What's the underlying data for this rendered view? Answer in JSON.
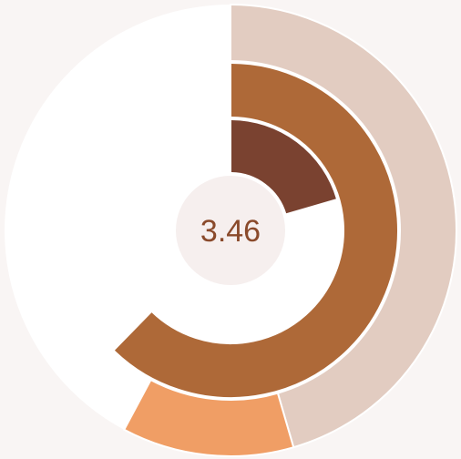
{
  "chart_data": {
    "type": "pie",
    "subtype": "nested-radial-donut",
    "center_label": "3.46",
    "colors": {
      "background": "#f9f5f4",
      "track": "#ffffff",
      "center_disc": "#f6efee",
      "center_text": "#8a4a2b"
    },
    "rings": [
      {
        "ring": "outer",
        "slices": [
          {
            "value": 0.455,
            "color": "#e2ccc1"
          },
          {
            "value": 0.123,
            "color": "#f09e65"
          }
        ]
      },
      {
        "ring": "middle",
        "slices": [
          {
            "value": 0.623,
            "color": "#ae6938"
          }
        ]
      },
      {
        "ring": "inner",
        "slices": [
          {
            "value": 0.205,
            "color": "#7a4230"
          }
        ]
      }
    ]
  }
}
